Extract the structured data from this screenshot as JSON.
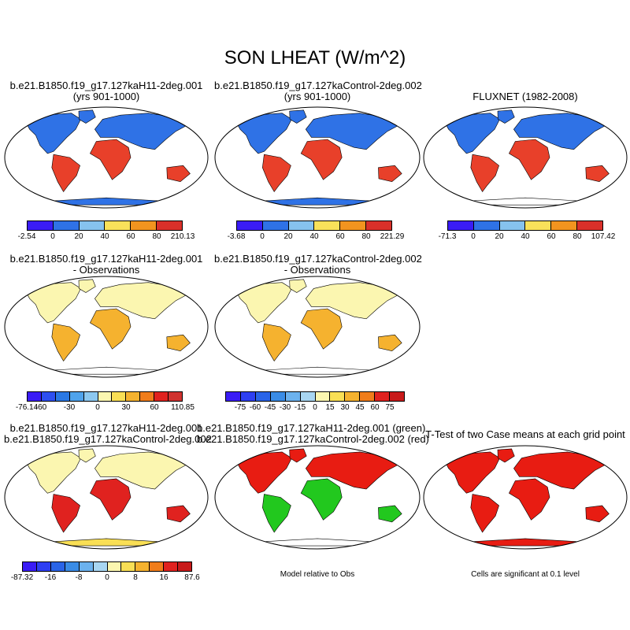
{
  "title": "SON LHEAT (W/m^2)",
  "panels": {
    "p1": {
      "line1": "b.e21.B1850.f19_g17.127kaH11-2deg.001",
      "line2": "(yrs 901-1000)"
    },
    "p2": {
      "line1": "b.e21.B1850.f19_g17.127kaControl-2deg.002",
      "line2": "(yrs 901-1000)"
    },
    "p3": {
      "line1": "FLUXNET (1982-2008)"
    },
    "p4": {
      "line1": "b.e21.B1850.f19_g17.127kaH11-2deg.001",
      "line2": "- Observations"
    },
    "p5": {
      "line1": "b.e21.B1850.f19_g17.127kaControl-2deg.002",
      "line2": "- Observations"
    },
    "p7": {
      "line1": "b.e21.B1850.f19_g17.127kaH11-2deg.001",
      "line2": "b.e21.B1850.f19_g17.127kaControl-2deg.002"
    },
    "p8": {
      "line1": "b.e21.B1850.f19_g17.127kaH11-2deg.001 (green)",
      "line2": "b.e21.B1850.f19_g17.127kaControl-2deg.002 (red)"
    },
    "p9": {
      "line1": "T-Test of two Case means at each grid point"
    }
  },
  "notes": {
    "model_relative": "Model relative to Obs",
    "cells_significant": "Cells are significant at 0.1 level"
  },
  "colorbars": {
    "cb1": {
      "colors": [
        "#3a1cf5",
        "#2f72e6",
        "#86c2ee",
        "#f9e15a",
        "#f2941f",
        "#d9302a"
      ],
      "labels": [
        "-2.54",
        "0",
        "20",
        "40",
        "60",
        "80",
        "210.13"
      ]
    },
    "cb2": {
      "colors": [
        "#3a1cf5",
        "#2f72e6",
        "#86c2ee",
        "#f9e15a",
        "#f2941f",
        "#d9302a"
      ],
      "labels": [
        "-3.68",
        "0",
        "20",
        "40",
        "60",
        "80",
        "221.29"
      ]
    },
    "cb3": {
      "colors": [
        "#3a1cf5",
        "#2f72e6",
        "#86c2ee",
        "#f9e15a",
        "#f2941f",
        "#d9302a"
      ],
      "labels": [
        "-71.3",
        "0",
        "20",
        "40",
        "60",
        "80",
        "107.42"
      ]
    },
    "cb4": {
      "colors": [
        "#3a1cf5",
        "#2e4ff0",
        "#2a78e4",
        "#4fa3ec",
        "#8cc8f0",
        "#fbf6b0",
        "#f9df55",
        "#f5b22f",
        "#f07d1b",
        "#e0221f",
        "#d0322f"
      ],
      "labels": [
        "-76.14",
        "-60",
        "-30",
        "0",
        "30",
        "60",
        "110.85"
      ],
      "label_slots": [
        0,
        1,
        3,
        5,
        7,
        9,
        11
      ]
    },
    "cb5": {
      "colors": [
        "#3a1cf5",
        "#2e3ff2",
        "#2a64e8",
        "#3a8ce6",
        "#6cb2ee",
        "#a8d6f2",
        "#fbf6b0",
        "#f9df55",
        "#f5b22f",
        "#f07d1b",
        "#e0221f",
        "#c81a1a"
      ],
      "labels": [
        "-75",
        "-60",
        "-45",
        "-30",
        "-15",
        "0",
        "15",
        "30",
        "45",
        "60",
        "75"
      ],
      "label_slots": [
        1,
        2,
        3,
        4,
        5,
        6,
        7,
        8,
        9,
        10,
        11
      ]
    },
    "cb7": {
      "colors": [
        "#3a1cf5",
        "#2e3ff2",
        "#2a64e8",
        "#3a8ce6",
        "#6cb2ee",
        "#a8d6f2",
        "#fbf6b0",
        "#f9df55",
        "#f5b22f",
        "#f07d1b",
        "#e0221f",
        "#c81a1a"
      ],
      "labels": [
        "-87.32",
        "-16",
        "-8",
        "0",
        "8",
        "16",
        "87.6"
      ],
      "label_slots": [
        0,
        2,
        4,
        6,
        8,
        10,
        12
      ]
    }
  },
  "map_styles": {
    "m1": {
      "ocean": "#ffffff",
      "land": [
        "#2f72e6",
        "#2f72e6",
        "#e8402a"
      ],
      "fill": "abs"
    },
    "m2": {
      "ocean": "#ffffff",
      "land": [
        "#2f72e6",
        "#2f72e6",
        "#e8402a"
      ],
      "fill": "abs"
    },
    "m3": {
      "ocean": "#ffffff",
      "land": [
        "#2f72e6",
        "#86c2ee",
        "#e8402a"
      ],
      "fill": "abs"
    },
    "m4": {
      "ocean": "#ffffff",
      "land": [
        "#a8d6f2",
        "#fbf6b0",
        "#f5b22f"
      ],
      "fill": "diff"
    },
    "m5": {
      "ocean": "#ffffff",
      "land": [
        "#a8d6f2",
        "#fbf6b0",
        "#f5b22f"
      ],
      "fill": "diff"
    },
    "m7": {
      "ocean": "#ffffff",
      "land": [
        "#6cb2ee",
        "#fbf6b0",
        "#e0221f"
      ],
      "fill": "diff"
    },
    "m8": {
      "ocean": "#ffffff",
      "land": [
        "#e81c12",
        "#22c81e",
        "#ffffff"
      ],
      "fill": "mix"
    },
    "m9": {
      "ocean": "#ffffff",
      "land": [
        "#e81c12",
        "#e81c12",
        "#ffffff"
      ],
      "fill": "sig"
    }
  }
}
